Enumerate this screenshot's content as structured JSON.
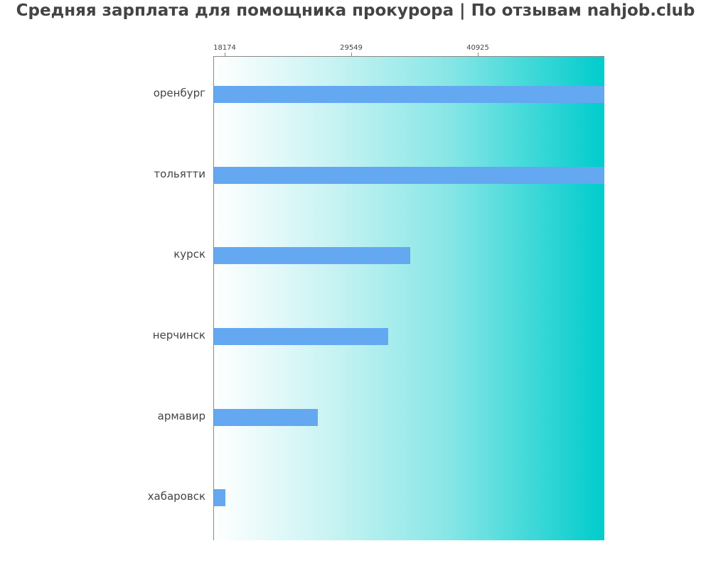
{
  "chart_data": {
    "type": "bar",
    "orientation": "horizontal",
    "title": "Средняя зарплата для помощника прокурора | По отзывам nahjob.club",
    "xlabel": "",
    "ylabel": "",
    "x_ticks": [
      {
        "label": "18174",
        "value": 18174
      },
      {
        "label": "29549",
        "value": 29549
      },
      {
        "label": "40925",
        "value": 40925
      }
    ],
    "xlim": [
      17150,
      52300
    ],
    "categories": [
      "оренбург",
      "тольятти",
      "курск",
      "нерчинск",
      "армавир",
      "хабаровск"
    ],
    "values": [
      52300,
      52300,
      34860,
      32880,
      26550,
      18240
    ],
    "bar_color": "#63a8f0",
    "background_gradient": [
      "#ffffff",
      "#00cccc"
    ],
    "grid": false,
    "legend": null
  },
  "ui": {
    "title": "Средняя зарплата для помощника прокурора | По отзывам nahjob.club"
  }
}
